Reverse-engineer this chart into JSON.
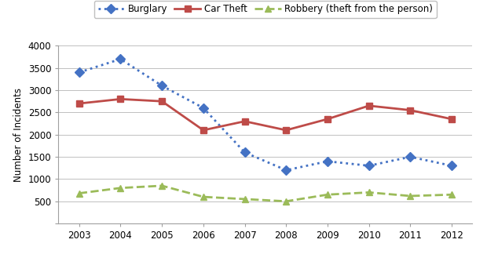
{
  "years": [
    2003,
    2004,
    2005,
    2006,
    2007,
    2008,
    2009,
    2010,
    2011,
    2012
  ],
  "burglary": [
    3400,
    3700,
    3100,
    2600,
    1600,
    1200,
    1400,
    1300,
    1500,
    1300
  ],
  "car_theft": [
    2700,
    2800,
    2750,
    2100,
    2300,
    2100,
    2350,
    2650,
    2550,
    2350
  ],
  "robbery": [
    680,
    800,
    850,
    600,
    550,
    500,
    650,
    700,
    620,
    650
  ],
  "burglary_color": "#4472C4",
  "car_theft_color": "#BE4B48",
  "robbery_color": "#9BBB59",
  "ylabel": "Number of Incidents",
  "ylim": [
    0,
    4000
  ],
  "yticks": [
    0,
    500,
    1000,
    1500,
    2000,
    2500,
    3000,
    3500,
    4000
  ],
  "legend_labels": [
    "Burglary",
    "Car Theft",
    "Robbery (theft from the person)"
  ],
  "bg_color": "#FFFFFF",
  "grid_color": "#C0C0C0",
  "legend_box_color": "#E8E8E8"
}
